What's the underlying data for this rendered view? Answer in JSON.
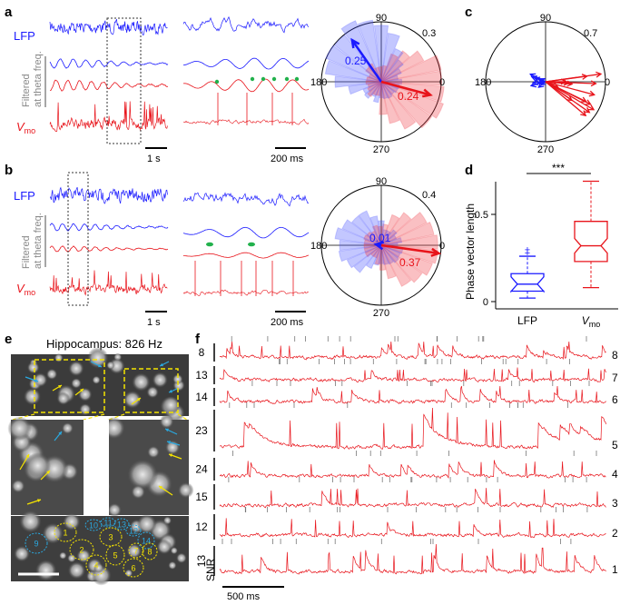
{
  "panels": {
    "a": "a",
    "b": "b",
    "c": "c",
    "d": "d",
    "e": "e",
    "f": "f"
  },
  "traces": {
    "lfp": "LFP",
    "filtered_line1": "Filtered",
    "filtered_line2": "at theta freq.",
    "vmo_main": "V",
    "vmo_sub": "mo"
  },
  "scales": {
    "a_left": "1 s",
    "a_mid": "200 ms",
    "b_left": "1 s",
    "b_mid": "200 ms",
    "f_bar": "500 ms"
  },
  "polar_a": {
    "top": "90",
    "left": "180",
    "right": "0",
    "bottom": "270",
    "rmax": "0.3",
    "lfp_val": "0.25",
    "vmo_val": "0.24"
  },
  "polar_b": {
    "top": "90",
    "left": "180",
    "right": "0",
    "bottom": "270",
    "rmax": "0.4",
    "lfp_val": "0.01",
    "vmo_val": "0.37"
  },
  "polar_c": {
    "top": "90",
    "left": "180",
    "right": "0",
    "bottom": "270",
    "rmax": "0.7"
  },
  "boxplot_d": {
    "ylabel": "Phase vector length",
    "yticks": [
      "0",
      "0.5"
    ],
    "significance": "***",
    "groups": [
      {
        "label": "LFP",
        "min": 0.02,
        "q1": 0.06,
        "median": 0.1,
        "q3": 0.16,
        "max": 0.26,
        "color": "#1a1aff",
        "outliers": [
          0.28,
          0.3
        ]
      },
      {
        "label": "V",
        "sub": "mo",
        "min": 0.08,
        "q1": 0.23,
        "median": 0.32,
        "q3": 0.46,
        "max": 0.69,
        "color": "#e8141b",
        "outliers": []
      }
    ]
  },
  "panel_e": {
    "title": "Hippocampus: 826 Hz",
    "roi_labels": [
      "1",
      "2",
      "3",
      "4",
      "5",
      "6",
      "7",
      "8",
      "9",
      "10",
      "11",
      "12",
      "13",
      "14"
    ]
  },
  "panel_f": {
    "snr_label": "SNR",
    "rows": [
      {
        "snr": "8",
        "cell": "8"
      },
      {
        "snr": "13",
        "cell": "7"
      },
      {
        "snr": "14",
        "cell": "6"
      },
      {
        "snr": "23",
        "cell": "5"
      },
      {
        "snr": "24",
        "cell": "4"
      },
      {
        "snr": "15",
        "cell": "3"
      },
      {
        "snr": "12",
        "cell": "2"
      },
      {
        "snr": "13",
        "cell": "1"
      }
    ]
  },
  "colors": {
    "lfp": "#1a1aff",
    "vmo": "#e8141b",
    "marker": "#22b14c",
    "roi_yellow": "#f5e400",
    "roi_cyan": "#2aa9e0"
  }
}
